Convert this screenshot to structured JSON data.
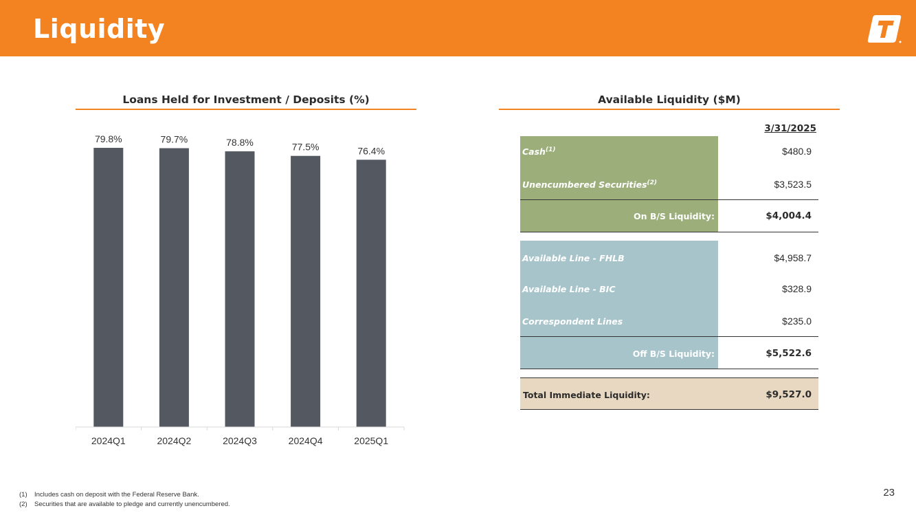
{
  "header": {
    "title": "Liquidity",
    "logo_icon": "bank-logo-icon"
  },
  "chart_section": {
    "title": "Loans Held for Investment / Deposits (%)"
  },
  "chart_data": {
    "type": "bar",
    "title": "Loans Held for Investment / Deposits (%)",
    "categories": [
      "2024Q1",
      "2024Q2",
      "2024Q3",
      "2024Q4",
      "2025Q1"
    ],
    "values": [
      79.8,
      79.7,
      78.8,
      77.5,
      76.4
    ],
    "data_labels": [
      "79.8%",
      "79.7%",
      "78.8%",
      "77.5%",
      "76.4%"
    ],
    "xlabel": "",
    "ylabel": "",
    "ylim": [
      0,
      80
    ],
    "grid": false,
    "bar_color": "#535861"
  },
  "liquidity": {
    "title": "Available Liquidity ($M)",
    "date_header": "3/31/2025",
    "on_bs": {
      "rows": [
        {
          "label": "Cash",
          "note": "(1)",
          "value": "$480.9"
        },
        {
          "label": "Unencumbered Securities",
          "note": "(2)",
          "value": "$3,523.5"
        }
      ],
      "subtotal_label": "On B/S Liquidity:",
      "subtotal_value": "$4,004.4"
    },
    "off_bs": {
      "rows": [
        {
          "label": "Available Line - FHLB",
          "value": "$4,958.7"
        },
        {
          "label": "Available Line - BIC",
          "value": "$328.9"
        },
        {
          "label": "Correspondent Lines",
          "value": "$235.0"
        }
      ],
      "subtotal_label": "Off B/S Liquidity:",
      "subtotal_value": "$5,522.6"
    },
    "total_label": "Total Immediate Liquidity:",
    "total_value": "$9,527.0"
  },
  "footnotes": [
    {
      "num": "(1)",
      "text": "Includes cash on deposit with the Federal Reserve Bank."
    },
    {
      "num": "(2)",
      "text": "Securities that are available to pledge and currently unencumbered."
    }
  ],
  "page_number": "23",
  "colors": {
    "brand_orange": "#f38321",
    "green_block": "#9caf7b",
    "blue_block": "#a7c4cb",
    "total_block": "#e8d8c1"
  }
}
